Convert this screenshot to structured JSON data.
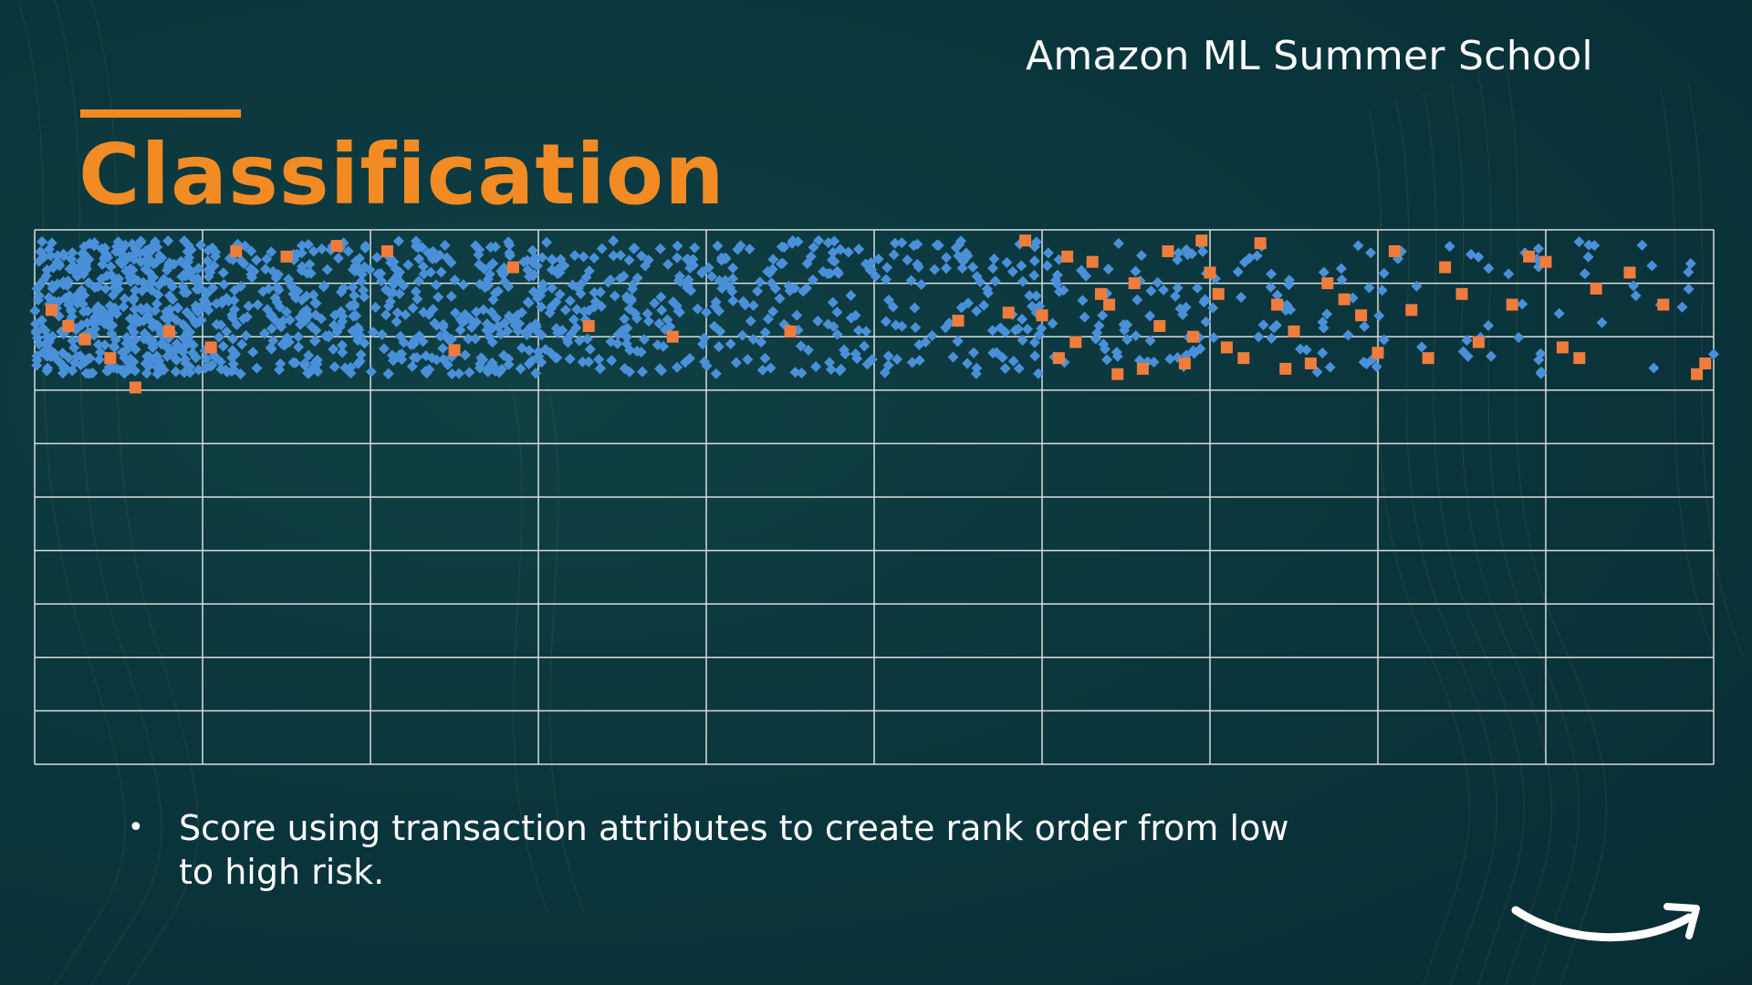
{
  "header": {
    "school": "Amazon ML Summer School"
  },
  "slide": {
    "title": "Classification",
    "bullets": [
      "Score using transaction attributes to create rank order from low to high risk."
    ]
  },
  "colors": {
    "background": "#0b363d",
    "title": "#f28b24",
    "legit_points": "#4a90d9",
    "fraud_points": "#f07c3c",
    "grid": "#d8dde0"
  },
  "icons": {
    "logo": "amazon-smile-arrow-icon"
  },
  "chart_data": {
    "type": "scatter",
    "title": "",
    "xlabel": "",
    "ylabel": "",
    "x_grid_columns": 10,
    "y_grid_rows": 10,
    "grid": true,
    "xlim": [
      0,
      10
    ],
    "ylim": [
      0,
      10
    ],
    "series": [
      {
        "marker": "diamond",
        "color": "#4a90d9",
        "density_profile": [
          {
            "x_range": [
              0,
              1
            ],
            "count": 420
          },
          {
            "x_range": [
              1,
              2
            ],
            "count": 230
          },
          {
            "x_range": [
              2,
              3
            ],
            "count": 210
          },
          {
            "x_range": [
              3,
              4
            ],
            "count": 150
          },
          {
            "x_range": [
              4,
              5
            ],
            "count": 120
          },
          {
            "x_range": [
              5,
              6
            ],
            "count": 100
          },
          {
            "x_range": [
              6,
              7
            ],
            "count": 70
          },
          {
            "x_range": [
              7,
              8
            ],
            "count": 45
          },
          {
            "x_range": [
              8,
              9
            ],
            "count": 30
          },
          {
            "x_range": [
              9,
              10
            ],
            "count": 18
          }
        ],
        "y_range": [
          7.3,
          9.8
        ]
      },
      {
        "marker": "square",
        "color": "#f07c3c",
        "points": [
          [
            0.1,
            8.5
          ],
          [
            0.2,
            8.2
          ],
          [
            0.3,
            7.95
          ],
          [
            0.45,
            7.6
          ],
          [
            0.6,
            7.05
          ],
          [
            0.8,
            8.1
          ],
          [
            1.05,
            7.8
          ],
          [
            1.2,
            9.6
          ],
          [
            1.5,
            9.5
          ],
          [
            1.8,
            9.7
          ],
          [
            2.1,
            9.6
          ],
          [
            2.5,
            7.75
          ],
          [
            2.85,
            9.3
          ],
          [
            3.3,
            8.2
          ],
          [
            3.8,
            8.0
          ],
          [
            4.5,
            8.1
          ],
          [
            5.5,
            8.3
          ],
          [
            5.8,
            8.45
          ],
          [
            5.9,
            9.8
          ],
          [
            6.0,
            8.4
          ],
          [
            6.1,
            7.6
          ],
          [
            6.2,
            7.9
          ],
          [
            6.3,
            9.4
          ],
          [
            6.4,
            8.6
          ],
          [
            6.45,
            7.3
          ],
          [
            6.55,
            9.0
          ],
          [
            6.6,
            7.4
          ],
          [
            6.7,
            8.2
          ],
          [
            6.75,
            9.6
          ],
          [
            6.85,
            7.5
          ],
          [
            6.9,
            8.0
          ],
          [
            7.0,
            9.2
          ],
          [
            7.05,
            8.8
          ],
          [
            7.1,
            7.8
          ],
          [
            7.2,
            7.6
          ],
          [
            7.3,
            9.75
          ],
          [
            7.4,
            8.6
          ],
          [
            7.5,
            8.1
          ],
          [
            7.6,
            7.5
          ],
          [
            7.7,
            9.0
          ],
          [
            7.8,
            8.7
          ],
          [
            7.9,
            8.4
          ],
          [
            8.0,
            7.7
          ],
          [
            8.1,
            9.6
          ],
          [
            8.2,
            8.5
          ],
          [
            8.4,
            9.3
          ],
          [
            8.6,
            7.9
          ],
          [
            8.8,
            8.6
          ],
          [
            9.0,
            9.4
          ],
          [
            9.1,
            7.8
          ],
          [
            9.3,
            8.9
          ],
          [
            9.5,
            9.2
          ],
          [
            9.7,
            8.6
          ],
          [
            9.9,
            7.3
          ],
          [
            9.95,
            7.5
          ],
          [
            6.15,
            9.5
          ],
          [
            6.35,
            8.8
          ],
          [
            6.95,
            9.8
          ],
          [
            7.45,
            7.4
          ],
          [
            8.3,
            7.6
          ],
          [
            8.5,
            8.8
          ],
          [
            8.9,
            9.5
          ],
          [
            9.2,
            7.6
          ]
        ]
      }
    ]
  }
}
